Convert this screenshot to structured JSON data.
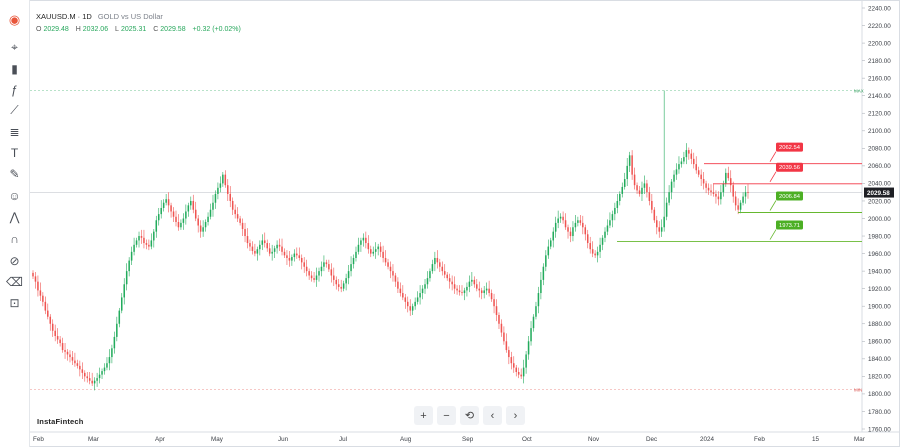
{
  "header": {
    "symbol": "XAUUSD.M · 1D",
    "description": "GOLD vs US Dollar"
  },
  "ohlc": {
    "o_label": "O",
    "o": "2029.48",
    "h_label": "H",
    "h": "2032.06",
    "l_label": "L",
    "l": "2025.31",
    "c_label": "C",
    "c": "2029.58",
    "change": "+0.32 (+0.02%)"
  },
  "toolbar": {
    "items": [
      "logo-icon",
      "cursor-icon",
      "candle-icon",
      "fx-icon",
      "trend-line-icon",
      "fib-icon",
      "text-icon",
      "brush-icon",
      "smile-icon",
      "pattern-icon",
      "magnet-icon",
      "eye-off-icon",
      "trash-icon",
      "lock-icon"
    ]
  },
  "brand": "InstaFintech",
  "nav": {
    "zoom_in": "+",
    "zoom_out": "−",
    "reset": "⟲",
    "prev": "‹",
    "next": "›"
  },
  "colors": {
    "up": "#22ab5c",
    "down": "#ef5350",
    "red_label": "#f23645",
    "green_label": "#4caf24",
    "green_line": "#66b82f",
    "axis_text": "#3b3f46",
    "grid": "#e5e8ec"
  },
  "chart_data": {
    "type": "candlestick",
    "y_axis": {
      "min": 1760,
      "max": 2240,
      "ticks": [
        1760,
        1780,
        1800,
        1820,
        1840,
        1860,
        1880,
        1900,
        1920,
        1940,
        1960,
        1980,
        2000,
        2020,
        2040,
        2060,
        2080,
        2100,
        2120,
        2140,
        2160,
        2180,
        2200,
        2220,
        2240
      ],
      "tick_labels": [
        "1760.00",
        "1780.00",
        "1800.00",
        "1820.00",
        "1840.00",
        "1860.00",
        "1880.00",
        "1900.00",
        "1920.00",
        "1940.00",
        "1960.00",
        "1980.00",
        "2000.00",
        "2020.00",
        "2040.00",
        "2060.00",
        "2080.00",
        "2100.00",
        "2120.00",
        "2140.00",
        "2160.00",
        "2180.00",
        "2200.00",
        "2220.00",
        "2240.00"
      ]
    },
    "x_axis": {
      "labels": [
        "Feb",
        "Mar",
        "Apr",
        "May",
        "Jun",
        "Jul",
        "Aug",
        "Sep",
        "Oct",
        "Nov",
        "Dec",
        "2024",
        "Feb",
        "15",
        "Mar"
      ]
    },
    "price_marker": {
      "value": 2029.58,
      "label": "2029.58"
    },
    "max_line": {
      "value": 2146,
      "label": "MAX"
    },
    "min_line": {
      "value": 1805,
      "label": "MIN"
    },
    "levels": [
      {
        "value": 2062.54,
        "label": "2062.54",
        "kind": "resistance"
      },
      {
        "value": 2039.56,
        "label": "2039.56",
        "kind": "resistance"
      },
      {
        "value": 2006.84,
        "label": "2006.84",
        "kind": "support"
      },
      {
        "value": 1973.71,
        "label": "1973.71",
        "kind": "support"
      }
    ],
    "closes": [
      1934,
      1928,
      1918,
      1912,
      1905,
      1895,
      1888,
      1880,
      1872,
      1866,
      1862,
      1858,
      1850,
      1848,
      1845,
      1842,
      1838,
      1835,
      1832,
      1828,
      1824,
      1820,
      1818,
      1815,
      1812,
      1815,
      1818,
      1822,
      1826,
      1830,
      1835,
      1842,
      1852,
      1865,
      1880,
      1895,
      1910,
      1925,
      1940,
      1952,
      1962,
      1970,
      1975,
      1980,
      1978,
      1972,
      1970,
      1968,
      1975,
      1985,
      1998,
      2005,
      2012,
      2018,
      2022,
      2015,
      2008,
      2002,
      1996,
      1990,
      1995,
      2000,
      2008,
      2015,
      2020,
      2010,
      2000,
      1992,
      1985,
      1990,
      1996,
      2002,
      2010,
      2018,
      2028,
      2035,
      2040,
      2050,
      2038,
      2028,
      2020,
      2010,
      2005,
      2000,
      1995,
      1988,
      1980,
      1972,
      1968,
      1963,
      1960,
      1965,
      1970,
      1975,
      1972,
      1966,
      1960,
      1962,
      1966,
      1970,
      1968,
      1962,
      1958,
      1955,
      1952,
      1956,
      1960,
      1958,
      1955,
      1950,
      1945,
      1940,
      1935,
      1932,
      1930,
      1935,
      1940,
      1945,
      1950,
      1948,
      1942,
      1935,
      1930,
      1925,
      1922,
      1920,
      1926,
      1932,
      1940,
      1948,
      1955,
      1962,
      1970,
      1975,
      1978,
      1972,
      1965,
      1960,
      1962,
      1965,
      1968,
      1962,
      1955,
      1950,
      1945,
      1940,
      1935,
      1928,
      1920,
      1915,
      1910,
      1905,
      1900,
      1895,
      1900,
      1905,
      1910,
      1915,
      1920,
      1925,
      1932,
      1940,
      1948,
      1955,
      1950,
      1945,
      1940,
      1936,
      1932,
      1928,
      1925,
      1920,
      1918,
      1916,
      1915,
      1918,
      1922,
      1928,
      1930,
      1925,
      1920,
      1918,
      1915,
      1918,
      1920,
      1915,
      1908,
      1900,
      1890,
      1880,
      1870,
      1860,
      1850,
      1842,
      1835,
      1830,
      1825,
      1822,
      1820,
      1830,
      1845,
      1860,
      1875,
      1888,
      1900,
      1915,
      1930,
      1945,
      1958,
      1968,
      1975,
      1985,
      1995,
      2000,
      2002,
      1998,
      1990,
      1985,
      1980,
      1990,
      1995,
      1998,
      1995,
      1990,
      1982,
      1972,
      1965,
      1960,
      1958,
      1962,
      1970,
      1978,
      1985,
      1992,
      1998,
      2005,
      2012,
      2020,
      2028,
      2036,
      2045,
      2060,
      2072,
      2050,
      2038,
      2032,
      2028,
      2035,
      2040,
      2030,
      2020,
      2010,
      1998,
      1990,
      1985,
      1990,
      2002,
      2018,
      2030,
      2042,
      2050,
      2056,
      2062,
      2065,
      2070,
      2078,
      2074,
      2068,
      2062,
      2055,
      2050,
      2045,
      2040,
      2035,
      2032,
      2030,
      2028,
      2025,
      2022,
      2030,
      2040,
      2052,
      2046,
      2038,
      2025,
      2015,
      2010,
      2018,
      2025,
      2030,
      2029.58
    ]
  }
}
